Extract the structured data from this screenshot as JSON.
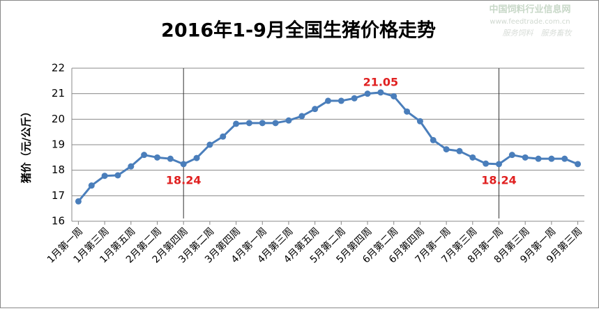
{
  "chart_data": {
    "type": "line",
    "title": "2016年1-9月全国生猪价格走势",
    "y_label": "猪价（元/公斤）",
    "watermark": {
      "name": "中国饲料行业信息网",
      "url": "www.feedtrade.com.cn",
      "slogan": "服务饲料　服务畜牧"
    },
    "categories": [
      "1月第一周",
      null,
      "1月第三周",
      null,
      "1月第五周",
      null,
      "2月第二周",
      null,
      "2月第四周",
      null,
      "3月第二周",
      null,
      "3月第四周",
      null,
      "4月第一周",
      null,
      "4月第三周",
      null,
      "4月第五周",
      null,
      "5月第二周",
      null,
      "5月第四周",
      null,
      "6月第二周",
      null,
      "6月第四周",
      null,
      "7月第一周",
      null,
      "7月第三周",
      null,
      "8月第一周",
      null,
      "8月第三周",
      null,
      "9月第一周",
      null,
      "9月第三周"
    ],
    "series": [
      {
        "name": "猪价",
        "color": "#4a7ebb",
        "values": [
          16.78,
          17.4,
          17.78,
          17.8,
          18.15,
          18.6,
          18.5,
          18.45,
          18.24,
          18.48,
          19.0,
          19.32,
          19.82,
          19.85,
          19.85,
          19.85,
          19.95,
          20.12,
          20.4,
          20.72,
          20.72,
          20.82,
          21.0,
          21.05,
          20.9,
          20.3,
          19.92,
          19.18,
          18.82,
          18.75,
          18.5,
          18.26,
          18.24,
          18.6,
          18.5,
          18.45,
          18.45,
          18.45,
          18.24
        ],
        "value_labels": [
          null,
          null,
          null,
          null,
          null,
          null,
          null,
          null,
          "18.24",
          null,
          null,
          null,
          null,
          null,
          null,
          null,
          null,
          null,
          null,
          null,
          null,
          null,
          null,
          "21.05",
          null,
          null,
          null,
          null,
          null,
          null,
          null,
          null,
          "18.24",
          null,
          null,
          null,
          null,
          null,
          null
        ]
      }
    ],
    "label_color": "#e02020",
    "vlines": [
      "2月第四周",
      "8月第一周"
    ],
    "ylim": [
      16,
      22
    ],
    "yticks": [
      16,
      17,
      18,
      19,
      20,
      21,
      22
    ],
    "grid": true
  }
}
